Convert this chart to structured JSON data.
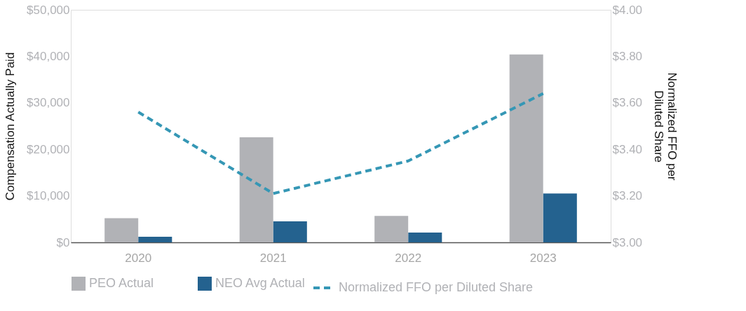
{
  "chart_data": {
    "type": "bar",
    "ylabel": "Compensation Actually Paid",
    "y2label": "Normalized FFO per Diluted Share",
    "categories": [
      "2020",
      "2021",
      "2022",
      "2023"
    ],
    "series": [
      {
        "name": "PEO Actual",
        "color": "#b1b2b6",
        "values": [
          5200,
          22600,
          5700,
          40400
        ]
      },
      {
        "name": "NEO Avg Actual",
        "color": "#24628f",
        "values": [
          1200,
          4500,
          2100,
          10500
        ]
      },
      {
        "name": "Normalized FFO per Diluted Share",
        "type": "line",
        "axis": "y2",
        "color": "#3597b5",
        "line_style": "dashed",
        "values": [
          3.56,
          3.21,
          3.35,
          3.64
        ]
      }
    ],
    "ylim": [
      0,
      50000
    ],
    "yticks": [
      {
        "value": 0,
        "label": "$0"
      },
      {
        "value": 10000,
        "label": "$10,000"
      },
      {
        "value": 20000,
        "label": "$20,000"
      },
      {
        "value": 30000,
        "label": "$30,000"
      },
      {
        "value": 40000,
        "label": "$40,000"
      },
      {
        "value": 50000,
        "label": "$50,000"
      }
    ],
    "y2lim": [
      3.0,
      4.0
    ],
    "y2ticks": [
      {
        "value": 3.0,
        "label": "$3.00"
      },
      {
        "value": 3.2,
        "label": "$3.20"
      },
      {
        "value": 3.4,
        "label": "$3.40"
      },
      {
        "value": 3.6,
        "label": "$3.60"
      },
      {
        "value": 3.8,
        "label": "$3.80"
      },
      {
        "value": 4.0,
        "label": "$4.00"
      }
    ],
    "grid": false,
    "legend": "bottom",
    "marker": "none"
  }
}
